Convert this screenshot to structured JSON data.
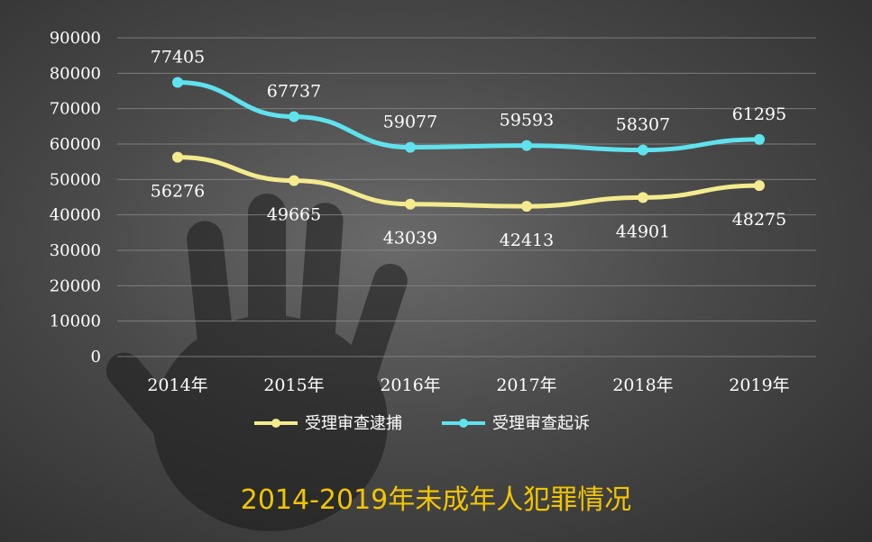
{
  "chart_data": {
    "type": "line",
    "title": "2014-2019年未成年人犯罪情况",
    "categories": [
      "2014年",
      "2015年",
      "2016年",
      "2017年",
      "2018年",
      "2019年"
    ],
    "ylim": [
      0,
      90000
    ],
    "yticks": [
      0,
      10000,
      20000,
      30000,
      40000,
      50000,
      60000,
      70000,
      80000,
      90000
    ],
    "grid": true,
    "legend_position": "bottom",
    "series": [
      {
        "name": "受理审查逮捕",
        "color": "#f4ea8e",
        "values": [
          56276,
          49665,
          43039,
          42413,
          44901,
          48275
        ]
      },
      {
        "name": "受理审查起诉",
        "color": "#5fe2ee",
        "values": [
          77405,
          67737,
          59077,
          59593,
          58307,
          61295
        ]
      }
    ]
  }
}
